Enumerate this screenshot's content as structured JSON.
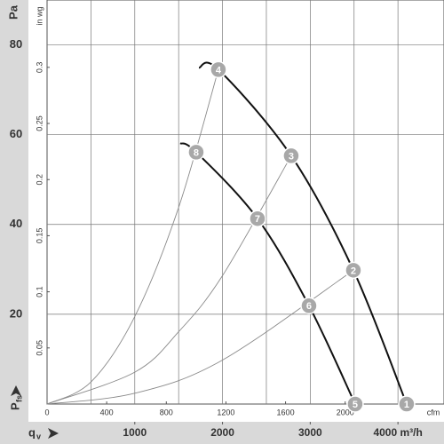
{
  "chart_data": {
    "type": "fan-curve",
    "y_label": "Pa",
    "y2_label": "in wg",
    "pressure_symbol": "P",
    "pressure_subscript": "fs",
    "flow_symbol": "q",
    "flow_subscript": "v",
    "x2_label": "cfm",
    "xlim": [
      0,
      4525
    ],
    "xticks": [
      1000,
      2000,
      3000,
      {
        "value": 4000,
        "label": "4000 m³/h"
      }
    ],
    "xgrid": [
      500,
      1000,
      1500,
      2000,
      2500,
      3000,
      3500,
      4000
    ],
    "x2lim": [
      0,
      2663
    ],
    "x2ticks": [
      0,
      400,
      800,
      1200,
      1600,
      2000
    ],
    "ylim": [
      0,
      90
    ],
    "yticks": [
      20,
      40,
      60,
      80
    ],
    "y2lim": [
      0,
      0.36
    ],
    "y2ticks": [
      0.05,
      0.1,
      0.15,
      0.2,
      0.25,
      0.3
    ],
    "grid": true,
    "fan_curves": [
      {
        "color": "#111111",
        "x": [
          1731,
          1953,
          2783,
          3492,
          4099
        ],
        "values": [
          74.9,
          74.5,
          55.3,
          29.8,
          0
        ]
      },
      {
        "color": "#111111",
        "x": [
          1518,
          1700,
          2399,
          2986,
          3512
        ],
        "values": [
          58.1,
          56.1,
          41.3,
          21.9,
          0
        ]
      }
    ],
    "system_curves": [
      {
        "color": "#8a8a8a",
        "x": [
          0,
          500,
          1000,
          1500,
          1953
        ],
        "values": [
          0,
          4.9,
          19.5,
          43.8,
          74.5
        ]
      },
      {
        "color": "#8a8a8a",
        "x": [
          0,
          1000,
          1500,
          2000,
          2783
        ],
        "values": [
          0,
          7.1,
          16.1,
          28.6,
          55.3
        ]
      },
      {
        "color": "#8a8a8a",
        "x": [
          0,
          1000,
          2000,
          3492
        ],
        "values": [
          0,
          2.4,
          9.8,
          29.8
        ]
      }
    ],
    "operating_points": [
      {
        "label": "1",
        "x": 4099,
        "y": 0
      },
      {
        "label": "2",
        "x": 3492,
        "y": 29.8
      },
      {
        "label": "3",
        "x": 2783,
        "y": 55.3
      },
      {
        "label": "4",
        "x": 1953,
        "y": 74.5
      },
      {
        "label": "5",
        "x": 3512,
        "y": 0
      },
      {
        "label": "6",
        "x": 2986,
        "y": 21.9
      },
      {
        "label": "7",
        "x": 2399,
        "y": 41.3
      },
      {
        "label": "8",
        "x": 1700,
        "y": 56.1
      }
    ],
    "point_color": "#a8a8a8"
  }
}
